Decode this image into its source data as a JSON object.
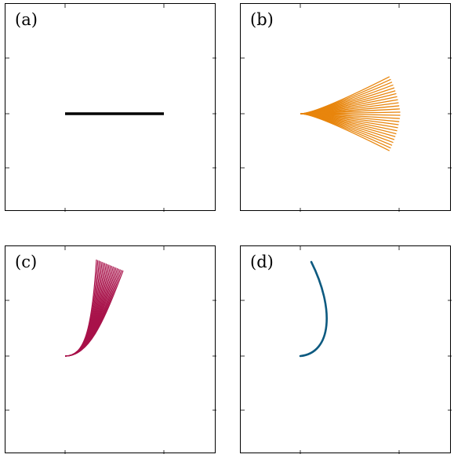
{
  "panels": [
    {
      "label": "(a)",
      "color": "#000000",
      "kind": "straight"
    },
    {
      "label": "(b)",
      "color": "#e8850c",
      "kind": "fan"
    },
    {
      "label": "(c)",
      "color": "#a8124a",
      "kind": "curl-bundle"
    },
    {
      "label": "(d)",
      "color": "#0d5a80",
      "kind": "single-curve"
    }
  ]
}
